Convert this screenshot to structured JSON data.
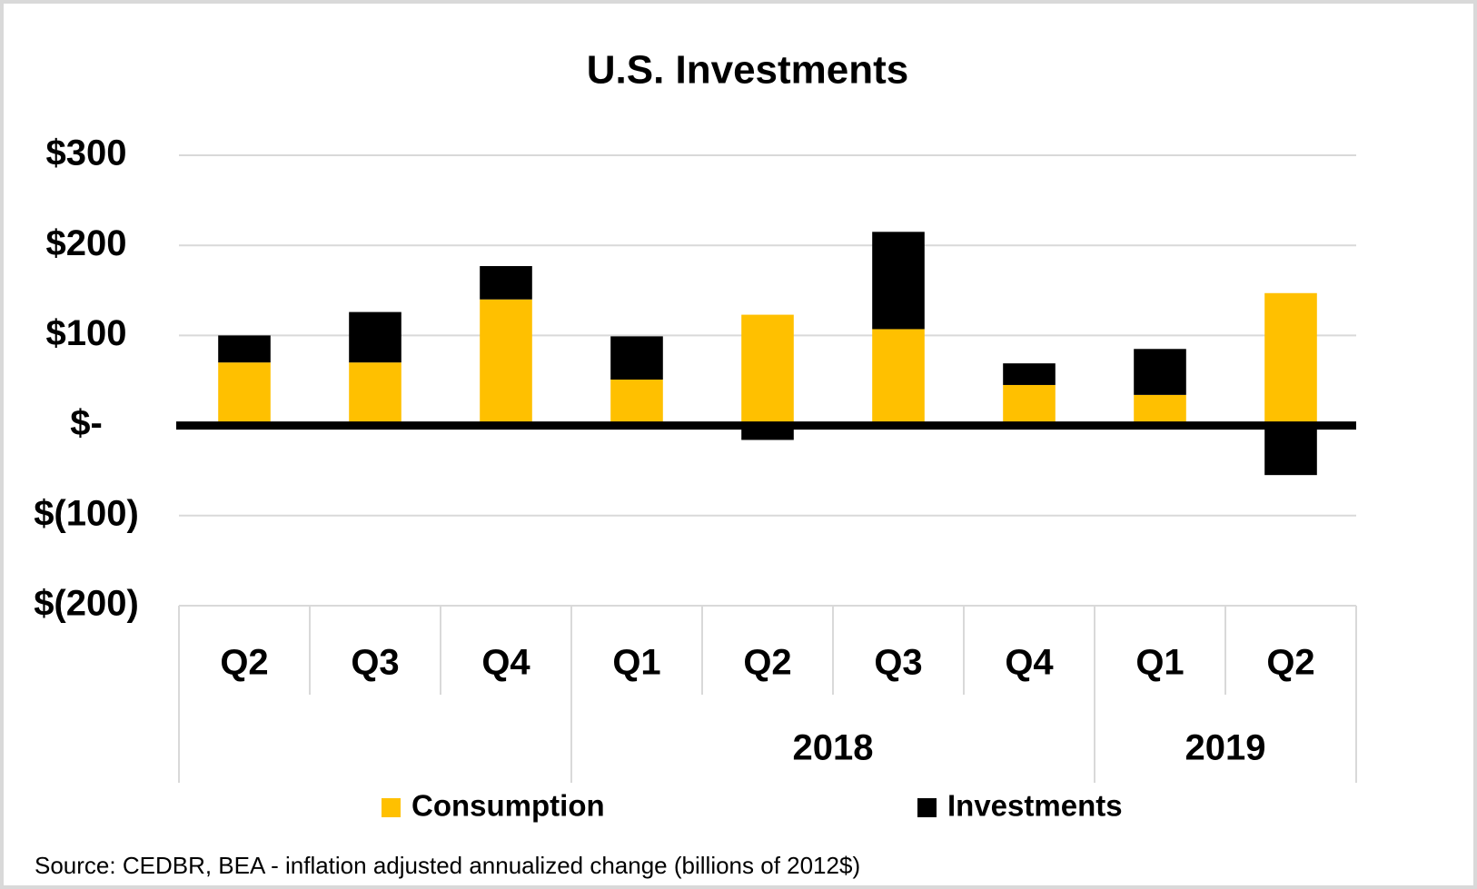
{
  "chart_data": {
    "type": "stacked_bar",
    "title": "U.S. Investments",
    "categories": [
      "Q2",
      "Q3",
      "Q4",
      "Q1",
      "Q2",
      "Q3",
      "Q4",
      "Q1",
      "Q2"
    ],
    "x_groups": [
      null,
      "2018",
      "2019"
    ],
    "group_sizes": [
      3,
      4,
      2
    ],
    "series": [
      {
        "name": "Consumption",
        "color": "#ffc000",
        "values": [
          70,
          70,
          140,
          51,
          123,
          107,
          45,
          34,
          147
        ]
      },
      {
        "name": "Investments",
        "color": "#000000",
        "values": [
          30,
          56,
          37,
          48,
          -16,
          108,
          24,
          51,
          -55
        ]
      }
    ],
    "ylim": [
      -200,
      300
    ],
    "yticks": [
      {
        "value": 300,
        "label": "$300"
      },
      {
        "value": 200,
        "label": "$200"
      },
      {
        "value": 100,
        "label": "$100"
      },
      {
        "value": 0,
        "label": "$-"
      },
      {
        "value": -100,
        "label": "$(100)"
      },
      {
        "value": -200,
        "label": "$(200)"
      }
    ],
    "grid": true,
    "legend": "bottom",
    "note": "Source: CEDBR, BEA - inflation adjusted annualized change (billions of 2012$)"
  }
}
